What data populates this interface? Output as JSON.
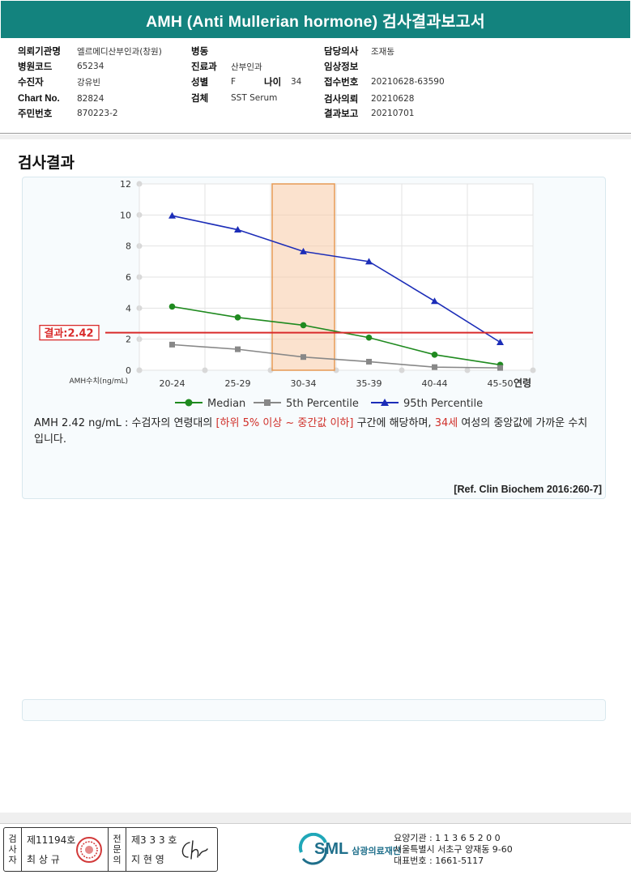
{
  "title": "AMH (Anti Mullerian hormone) 검사결과보고서",
  "info": {
    "institution_label": "의뢰기관명",
    "institution": "엘르메디산부인과(창원)",
    "hospital_code_label": "병원코드",
    "hospital_code": "65234",
    "patient_label": "수진자",
    "patient": "강유빈",
    "chart_no_label": "Chart No.",
    "chart_no": "82824",
    "id_label": "주민번호",
    "id": "870223-2",
    "ward_label": "병동",
    "ward": "",
    "dept_label": "진료과",
    "dept": "산부인과",
    "sex_label": "성별",
    "sex": "F",
    "age_label": "나이",
    "age": "34",
    "specimen_label": "검체",
    "specimen": "SST Serum",
    "doctor_label": "담당의사",
    "doctor": "조재동",
    "clinical_label": "임상정보",
    "clinical": "",
    "receipt_label": "접수번호",
    "receipt": "20210628-63590",
    "request_label": "검사의뢰",
    "request": "20210628",
    "report_label": "결과보고",
    "report": "20210701"
  },
  "section_title": "검사결과",
  "chart_data": {
    "type": "line",
    "categories": [
      "20-24",
      "25-29",
      "30-34",
      "35-39",
      "40-44",
      "45-50"
    ],
    "x_axis_label": "연령",
    "y_axis_label": "AMH수치(ng/mL)",
    "ylim": [
      0,
      12
    ],
    "yticks": [
      0,
      2,
      4,
      6,
      8,
      10,
      12
    ],
    "grid": true,
    "highlight_category": "30-34",
    "result_line": {
      "value": 2.42,
      "label": "결과:2.42",
      "color": "#d92b2b"
    },
    "series": [
      {
        "name": "Median",
        "color": "#1f8a1f",
        "marker": "circle",
        "values": [
          4.1,
          3.4,
          2.9,
          2.1,
          1.0,
          0.35
        ]
      },
      {
        "name": "5th Percentile",
        "color": "#888888",
        "marker": "square",
        "values": [
          1.65,
          1.35,
          0.85,
          0.55,
          0.2,
          0.15
        ]
      },
      {
        "name": "95th Percentile",
        "color": "#1c2db8",
        "marker": "triangle",
        "values": [
          9.95,
          9.05,
          7.65,
          7.0,
          4.45,
          1.8
        ]
      }
    ],
    "legend_position": "bottom"
  },
  "comment": {
    "part1": "AMH  2.42 ng/mL : 수검자의 연령대의 ",
    "range": "[하위 5% 이상 ~ 중간값 이하]",
    "part2": "  구간에 해당하며, ",
    "age": "34세",
    "part3": " 여성의 중앙값에 가까운 수치입니다."
  },
  "reference": "[Ref. Clin Biochem 2016:260-7]",
  "signatures": {
    "tester_label": "검사자",
    "tester_license": "제11194호",
    "tester_name": "최 상 규",
    "reviewer_label": "전문의",
    "reviewer_license": "제3 3 3 호",
    "reviewer_name": "지 현 영"
  },
  "footer": {
    "logo_text": "SML",
    "logo_korean": "삼광의료재단",
    "code_line": "요양기관 : 1 1 3 6 5 2 0 0",
    "address_line": "서울특별시 서초구 양재동 9-60",
    "phone_line": "대표번호 : 1661-5117"
  }
}
